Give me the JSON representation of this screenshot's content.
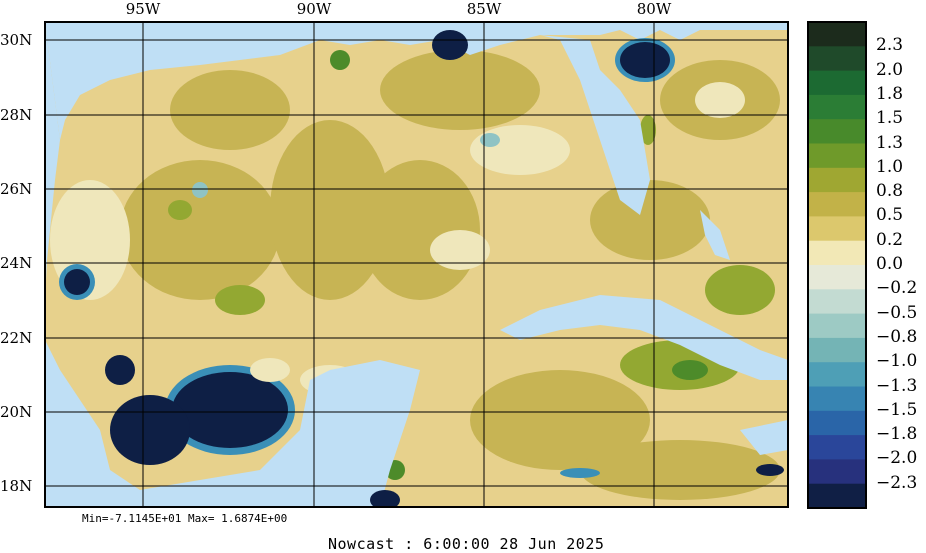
{
  "map": {
    "lon_labels": [
      "95W",
      "90W",
      "85W",
      "80W"
    ],
    "lat_labels": [
      "30N",
      "28N",
      "26N",
      "24N",
      "22N",
      "20N",
      "18N"
    ],
    "colors": {
      "land": "#bfdff5",
      "shallow_positive": "#e7d18c",
      "mid_positive": "#c7b454",
      "high_positive": "#93a832",
      "very_high_positive": "#4d8b2a",
      "near_zero": "#efe7bb",
      "negative_light": "#8fc3c4",
      "negative_mid": "#3a8fb7",
      "negative_deep": "#0e1f45"
    }
  },
  "colorbar": {
    "labels": [
      "2.3",
      "2.0",
      "1.8",
      "1.5",
      "1.3",
      "1.0",
      "0.8",
      "0.5",
      "0.2",
      "0.0",
      "−0.2",
      "−0.5",
      "−0.8",
      "−1.0",
      "−1.3",
      "−1.5",
      "−1.8",
      "−2.0",
      "−2.3"
    ],
    "colors": [
      "#1c2b1c",
      "#1f4a2a",
      "#1c6a32",
      "#2b7d35",
      "#488a2b",
      "#6f9a2a",
      "#9fa732",
      "#c2b248",
      "#dcc86d",
      "#f2e8b6",
      "#e6e9d8",
      "#c3dbd2",
      "#9dcac4",
      "#74b4b5",
      "#4e9fb6",
      "#3784b2",
      "#2a65a8",
      "#2a469a",
      "#27317d",
      "#101f45"
    ]
  },
  "footer": {
    "minmax": "Min=-7.1145E+01  Max= 1.6874E+00",
    "nowcast": "Nowcast :  6:00:00  28 Jun 2025"
  }
}
